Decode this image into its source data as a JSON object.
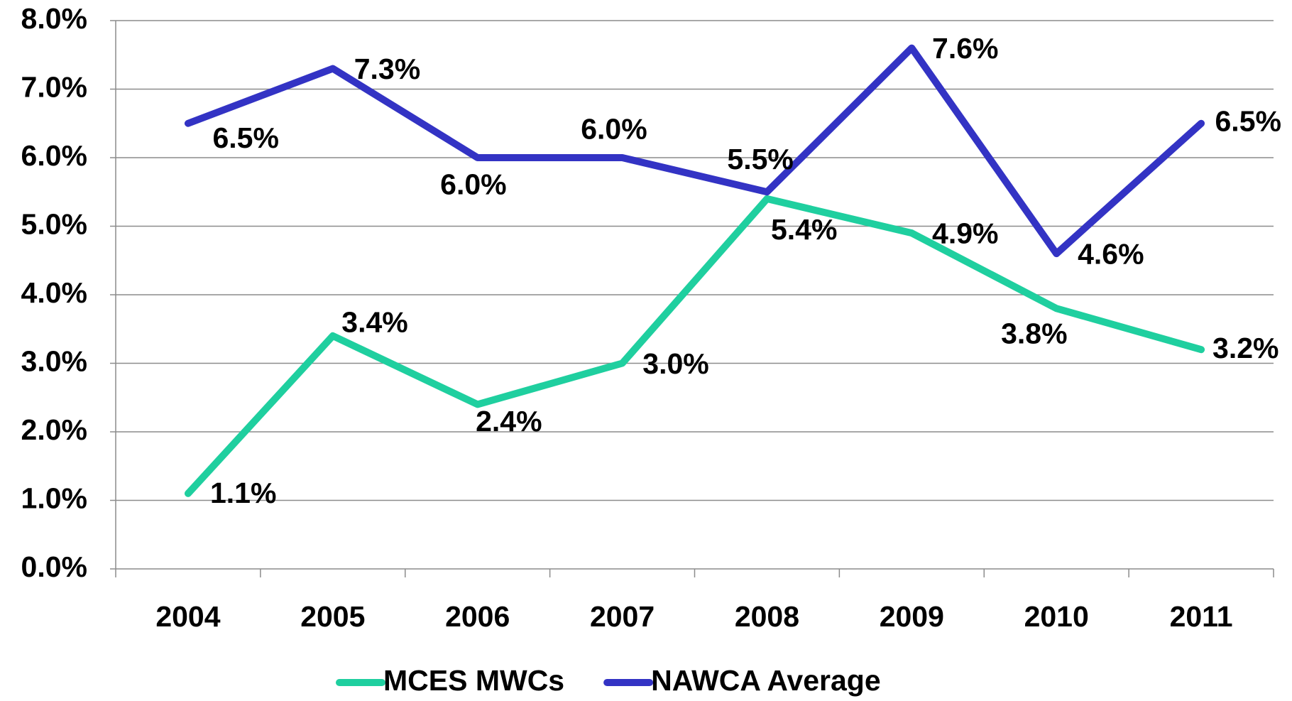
{
  "chart_data": {
    "type": "line",
    "categories": [
      "2004",
      "2005",
      "2006",
      "2007",
      "2008",
      "2009",
      "2010",
      "2011"
    ],
    "series": [
      {
        "name": "MCES MWCs",
        "color": "#1fcf9f",
        "values": [
          1.1,
          3.4,
          2.4,
          3.0,
          5.4,
          4.9,
          3.8,
          3.2
        ],
        "value_labels": [
          "1.1%",
          "3.4%",
          "2.4%",
          "3.0%",
          "5.4%",
          "4.9%",
          "3.8%",
          "3.2%"
        ]
      },
      {
        "name": "NAWCA Average",
        "color": "#3333c4",
        "values": [
          6.5,
          7.3,
          6.0,
          6.0,
          5.5,
          7.6,
          4.6,
          6.5
        ],
        "value_labels": [
          "6.5%",
          "7.3%",
          "6.0%",
          "6.0%",
          "5.5%",
          "7.6%",
          "4.6%",
          "6.5%"
        ]
      }
    ],
    "ylim": [
      0,
      8
    ],
    "yticks": [
      {
        "value": 0,
        "label": "0.0%"
      },
      {
        "value": 1,
        "label": "1.0%"
      },
      {
        "value": 2,
        "label": "2.0%"
      },
      {
        "value": 3,
        "label": "3.0%"
      },
      {
        "value": 4,
        "label": "4.0%"
      },
      {
        "value": 5,
        "label": "5.0%"
      },
      {
        "value": 6,
        "label": "6.0%"
      },
      {
        "value": 7,
        "label": "7.0%"
      },
      {
        "value": 8,
        "label": "8.0%"
      }
    ],
    "grid": true,
    "legend": "bottom"
  }
}
